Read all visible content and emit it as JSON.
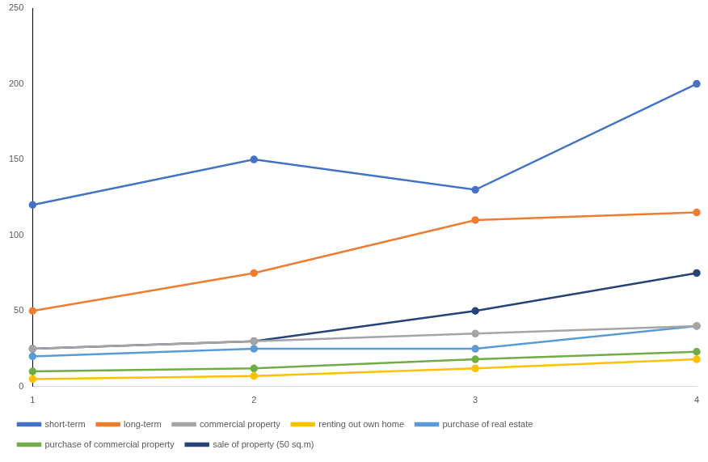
{
  "chart_data": {
    "type": "line",
    "categories": [
      "1",
      "2",
      "3",
      "4"
    ],
    "series": [
      {
        "name": "short-term",
        "color": "#4472c4",
        "values": [
          120,
          150,
          130,
          200
        ]
      },
      {
        "name": "long-term",
        "color": "#ed7d31",
        "values": [
          50,
          75,
          110,
          115
        ]
      },
      {
        "name": "commercial property",
        "color": "#a5a5a5",
        "values": [
          25,
          30,
          35,
          40
        ]
      },
      {
        "name": "renting out own home",
        "color": "#ffc000",
        "values": [
          5,
          7,
          12,
          18
        ]
      },
      {
        "name": "purchase of real estate",
        "color": "#5b9bd5",
        "values": [
          20,
          25,
          25,
          40
        ]
      },
      {
        "name": "purchase of commercial property",
        "color": "#70ad47",
        "values": [
          10,
          12,
          18,
          23
        ]
      },
      {
        "name": "sale of property (50 sq.m)",
        "color": "#264478",
        "values": [
          25,
          30,
          50,
          75
        ]
      }
    ],
    "ylim": [
      0,
      250
    ],
    "yticks": [
      0,
      50,
      100,
      150,
      200,
      250
    ],
    "grid": false,
    "legend": "bottom",
    "marker": "circle",
    "line_style": "solid"
  }
}
